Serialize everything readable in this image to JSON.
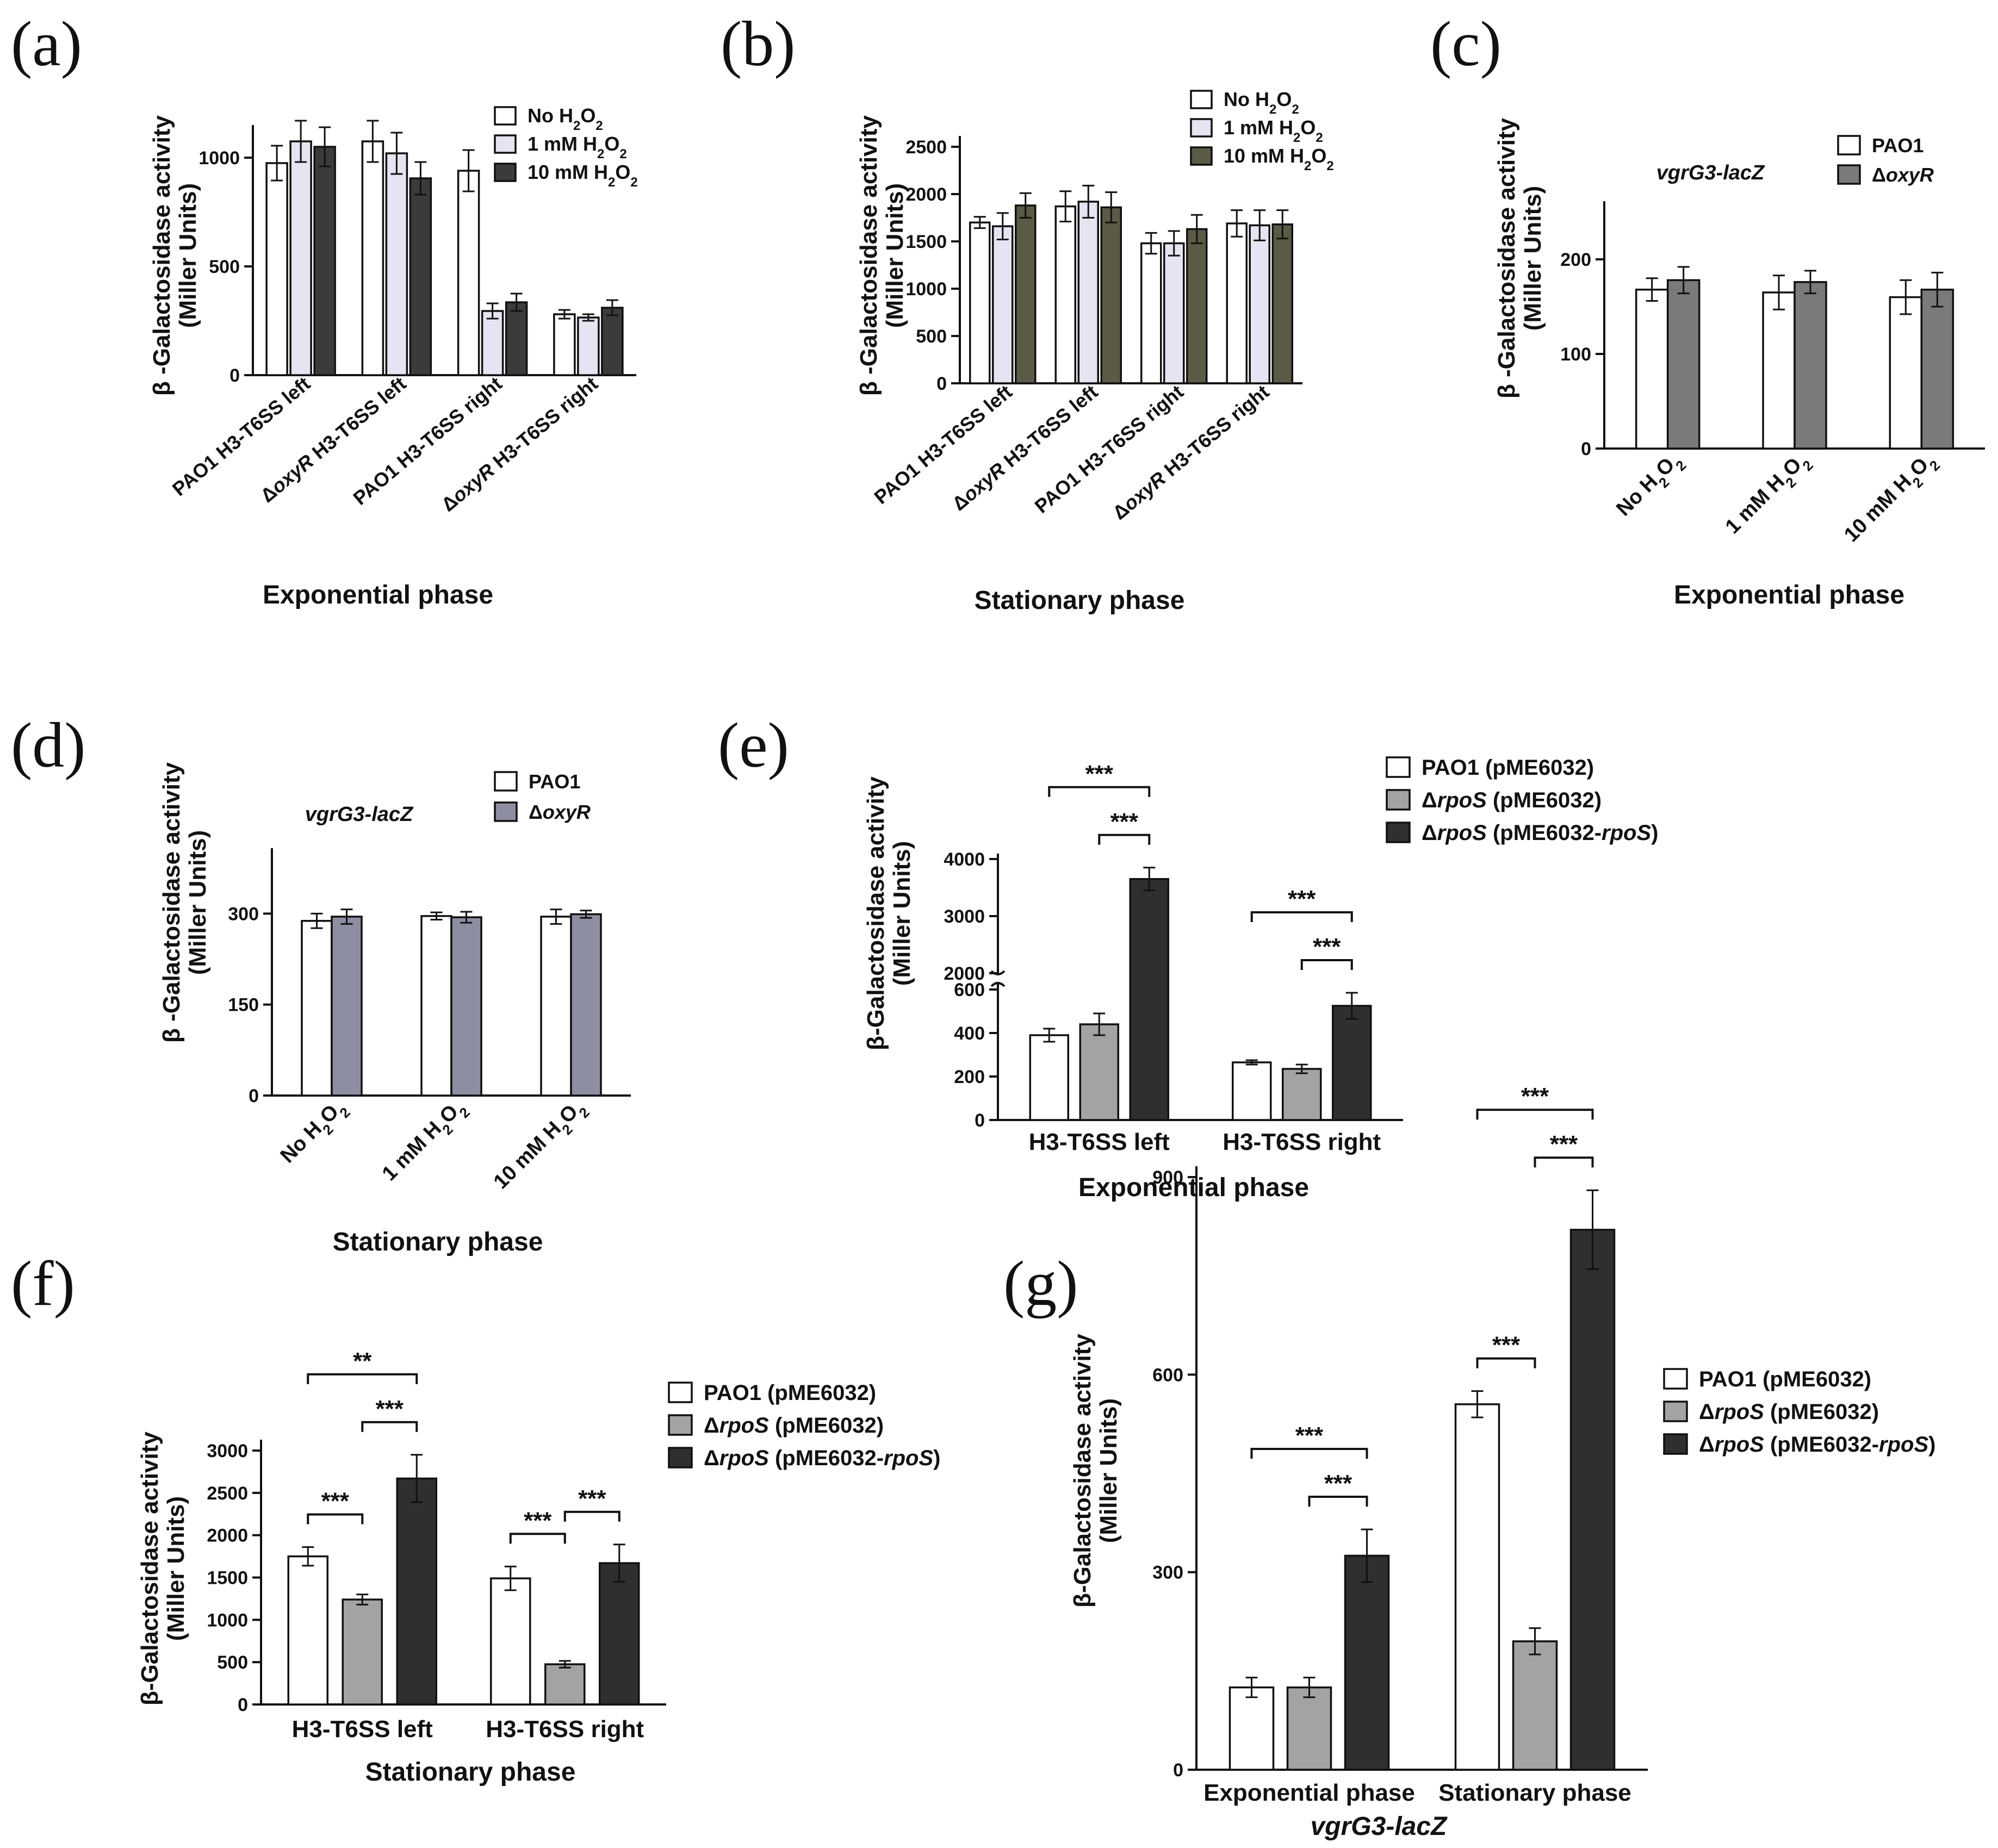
{
  "chart_data": [
    {
      "id": "a",
      "panel_label": "(a)",
      "type": "bar",
      "ylabel": "β -Galactosidase activity",
      "ylabel2": "(Miller Units)",
      "xlabel": "Exponential phase",
      "ylim": [
        0,
        1100
      ],
      "yticks": [
        "0",
        "500",
        "1000"
      ],
      "ytick_values": [
        0,
        500,
        1000
      ],
      "categories": [
        "PAO1 H3-T6SS left",
        "ΔoxyR H3-T6SS left",
        "PAO1 H3-T6SS right",
        "ΔoxyR H3-T6SS right"
      ],
      "category_parts": [
        [
          {
            "t": "PAO1 H3-T6SS left",
            "i": false
          }
        ],
        [
          {
            "t": "Δ",
            "i": false
          },
          {
            "t": "oxyR",
            "i": true
          },
          {
            "t": " H3-T6SS left",
            "i": false
          }
        ],
        [
          {
            "t": "PAO1 H3-T6SS right",
            "i": false
          }
        ],
        [
          {
            "t": "Δ",
            "i": false
          },
          {
            "t": "oxyR",
            "i": true
          },
          {
            "t": " H3-T6SS right",
            "i": false
          }
        ]
      ],
      "series": [
        {
          "name": "No H2O2",
          "color": "#ffffff",
          "values": [
            975,
            1075,
            940,
            280
          ],
          "errors": [
            80,
            95,
            95,
            20
          ]
        },
        {
          "name": "1 mM H2O2",
          "color": "#e6e4f2",
          "values": [
            1075,
            1020,
            295,
            265
          ],
          "errors": [
            95,
            95,
            35,
            15
          ]
        },
        {
          "name": "10 mM H2O2",
          "color": "#3b3b3b",
          "values": [
            1050,
            905,
            335,
            310
          ],
          "errors": [
            90,
            75,
            40,
            35
          ]
        }
      ],
      "legend": [
        {
          "parts": [
            {
              "t": "No H",
              "s": "n"
            },
            {
              "t": "2",
              "s": "sub"
            },
            {
              "t": "O",
              "s": "n"
            },
            {
              "t": "2",
              "s": "sub"
            }
          ]
        },
        {
          "parts": [
            {
              "t": "1 mM H",
              "s": "n"
            },
            {
              "t": "2",
              "s": "sub"
            },
            {
              "t": "O",
              "s": "n"
            },
            {
              "t": "2",
              "s": "sub"
            }
          ]
        },
        {
          "parts": [
            {
              "t": "10 mM H",
              "s": "n"
            },
            {
              "t": "2",
              "s": "sub"
            },
            {
              "t": "O",
              "s": "n"
            },
            {
              "t": "2",
              "s": "sub"
            }
          ]
        }
      ]
    },
    {
      "id": "b",
      "panel_label": "(b)",
      "type": "bar",
      "ylabel": "β -Galactosidase activity",
      "ylabel2": "(Miller Units)",
      "xlabel": "Stationary phase",
      "ylim": [
        0,
        2500
      ],
      "yticks": [
        "0",
        "500",
        "1000",
        "1500",
        "2000",
        "2500"
      ],
      "ytick_values": [
        0,
        500,
        1000,
        1500,
        2000,
        2500
      ],
      "categories": [
        "PAO1 H3-T6SS left",
        "ΔoxyR H3-T6SS left",
        "PAO1 H3-T6SS right",
        "ΔoxyR H3-T6SS right"
      ],
      "category_parts": [
        [
          {
            "t": "PAO1 H3-T6SS left",
            "i": false
          }
        ],
        [
          {
            "t": "Δ",
            "i": false
          },
          {
            "t": "oxyR",
            "i": true
          },
          {
            "t": " H3-T6SS left",
            "i": false
          }
        ],
        [
          {
            "t": "PAO1 H3-T6SS right",
            "i": false
          }
        ],
        [
          {
            "t": "Δ",
            "i": false
          },
          {
            "t": "oxyR",
            "i": true
          },
          {
            "t": " H3-T6SS right",
            "i": false
          }
        ]
      ],
      "series": [
        {
          "name": "No H2O2",
          "color": "#ffffff",
          "values": [
            1700,
            1870,
            1480,
            1690
          ],
          "errors": [
            60,
            160,
            110,
            140
          ]
        },
        {
          "name": "1 mM H2O2",
          "color": "#e6e4f2",
          "values": [
            1660,
            1920,
            1480,
            1670
          ],
          "errors": [
            140,
            170,
            130,
            160
          ]
        },
        {
          "name": "10 mM H2O2",
          "color": "#5a5a46",
          "values": [
            1880,
            1860,
            1630,
            1680
          ],
          "errors": [
            130,
            160,
            150,
            150
          ]
        }
      ],
      "legend": [
        {
          "parts": [
            {
              "t": "No H",
              "s": "n"
            },
            {
              "t": "2",
              "s": "sub"
            },
            {
              "t": "O",
              "s": "n"
            },
            {
              "t": "2",
              "s": "sub"
            }
          ]
        },
        {
          "parts": [
            {
              "t": "1 mM H",
              "s": "n"
            },
            {
              "t": "2",
              "s": "sub"
            },
            {
              "t": "O",
              "s": "n"
            },
            {
              "t": "2",
              "s": "sub"
            }
          ]
        },
        {
          "parts": [
            {
              "t": "10 mM H",
              "s": "n"
            },
            {
              "t": "2",
              "s": "sub"
            },
            {
              "t": "O",
              "s": "n"
            },
            {
              "t": "2",
              "s": "sub"
            }
          ]
        }
      ]
    },
    {
      "id": "c",
      "panel_label": "(c)",
      "type": "bar",
      "ylabel": "β -Galactosidase activity",
      "ylabel2": "(Miller Units)",
      "xlabel": "Exponential phase",
      "annotation": "vgrG3-lacZ",
      "ylim": [
        0,
        250
      ],
      "yticks": [
        "0",
        "100",
        "200"
      ],
      "ytick_values": [
        0,
        100,
        200
      ],
      "categories": [
        "No H2O2",
        "1 mM H2O2",
        "10 mM H2O2"
      ],
      "category_sub": [
        [
          {
            "t": "No H",
            "s": "n"
          },
          {
            "t": "2",
            "s": "sub"
          },
          {
            "t": "O",
            "s": "n"
          },
          {
            "t": "2",
            "s": "sub"
          }
        ],
        [
          {
            "t": "1 mM H",
            "s": "n"
          },
          {
            "t": "2",
            "s": "sub"
          },
          {
            "t": "O",
            "s": "n"
          },
          {
            "t": "2",
            "s": "sub"
          }
        ],
        [
          {
            "t": "10 mM H",
            "s": "n"
          },
          {
            "t": "2",
            "s": "sub"
          },
          {
            "t": "O",
            "s": "n"
          },
          {
            "t": "2",
            "s": "sub"
          }
        ]
      ],
      "series": [
        {
          "name": "PAO1",
          "color": "#ffffff",
          "values": [
            168,
            165,
            160
          ],
          "errors": [
            12,
            18,
            18
          ]
        },
        {
          "name": "ΔoxyR",
          "color": "#7a7a7a",
          "values": [
            178,
            176,
            168
          ],
          "errors": [
            14,
            12,
            18
          ]
        }
      ],
      "legend": [
        {
          "parts": [
            {
              "t": "PAO1",
              "s": "n"
            }
          ]
        },
        {
          "parts": [
            {
              "t": "Δ",
              "s": "n"
            },
            {
              "t": "oxyR",
              "s": "i"
            }
          ]
        }
      ]
    },
    {
      "id": "d",
      "panel_label": "(d)",
      "type": "bar",
      "ylabel": "β -Galactosidase activity",
      "ylabel2": "(Miller Units)",
      "xlabel": "Stationary phase",
      "annotation": "vgrG3-lacZ",
      "ylim": [
        0,
        390
      ],
      "yticks": [
        "0",
        "150",
        "300"
      ],
      "ytick_values": [
        0,
        150,
        300
      ],
      "categories": [
        "No H2O2",
        "1 mM H2O2",
        "10 mM H2O2"
      ],
      "category_sub": [
        [
          {
            "t": "No H",
            "s": "n"
          },
          {
            "t": "2",
            "s": "sub"
          },
          {
            "t": "O",
            "s": "n"
          },
          {
            "t": "2",
            "s": "sub"
          }
        ],
        [
          {
            "t": "1 mM H",
            "s": "n"
          },
          {
            "t": "2",
            "s": "sub"
          },
          {
            "t": "O",
            "s": "n"
          },
          {
            "t": "2",
            "s": "sub"
          }
        ],
        [
          {
            "t": "10 mM H",
            "s": "n"
          },
          {
            "t": "2",
            "s": "sub"
          },
          {
            "t": "O",
            "s": "n"
          },
          {
            "t": "2",
            "s": "sub"
          }
        ]
      ],
      "series": [
        {
          "name": "PAO1",
          "color": "#ffffff",
          "values": [
            288,
            296,
            295
          ],
          "errors": [
            12,
            6,
            12
          ]
        },
        {
          "name": "ΔoxyR",
          "color": "#8e8ea3",
          "values": [
            295,
            294,
            299
          ],
          "errors": [
            12,
            9,
            6
          ]
        }
      ],
      "legend": [
        {
          "parts": [
            {
              "t": "PAO1",
              "s": "n"
            }
          ]
        },
        {
          "parts": [
            {
              "t": "Δ",
              "s": "n"
            },
            {
              "t": "oxyR",
              "s": "i"
            }
          ]
        }
      ]
    },
    {
      "id": "e",
      "panel_label": "(e)",
      "type": "bar",
      "ylabel": "β-Galactosidase activity",
      "ylabel2": "(Miller Units)",
      "xlabel": "Exponential phase",
      "axis_break": {
        "lower": [
          0,
          650
        ],
        "upper": [
          2000,
          4000
        ]
      },
      "yticks_lower": [
        "0",
        "200",
        "400",
        "600"
      ],
      "ytick_lower_values": [
        0,
        200,
        400,
        600
      ],
      "yticks_upper": [
        "2000",
        "3000",
        "4000"
      ],
      "ytick_upper_values": [
        2000,
        3000,
        4000
      ],
      "categories": [
        "H3-T6SS left",
        "H3-T6SS right"
      ],
      "series": [
        {
          "name": "PAO1 (pME6032)",
          "color": "#ffffff",
          "values": [
            390,
            265
          ],
          "errors": [
            30,
            10
          ]
        },
        {
          "name": "ΔrpoS (pME6032)",
          "color": "#a3a3a3",
          "values": [
            440,
            235
          ],
          "errors": [
            50,
            20
          ]
        },
        {
          "name": "ΔrpoS (pME6032-rpoS)",
          "color": "#2f2f2f",
          "values": [
            3650,
            525
          ],
          "errors": [
            200,
            60
          ]
        }
      ],
      "significance": [
        {
          "group": 0,
          "from": 0,
          "to": 2,
          "label": "***",
          "level": 2
        },
        {
          "group": 0,
          "from": 1,
          "to": 2,
          "label": "***",
          "level": 1
        },
        {
          "group": 1,
          "from": 0,
          "to": 2,
          "label": "***",
          "level": 2
        },
        {
          "group": 1,
          "from": 1,
          "to": 2,
          "label": "***",
          "level": 1
        }
      ],
      "legend": [
        {
          "parts": [
            {
              "t": "PAO1 (pME6032)",
              "s": "n"
            }
          ]
        },
        {
          "parts": [
            {
              "t": "Δ",
              "s": "n"
            },
            {
              "t": "rpoS",
              "s": "i"
            },
            {
              "t": " (pME6032)",
              "s": "n"
            }
          ]
        },
        {
          "parts": [
            {
              "t": "Δ",
              "s": "n"
            },
            {
              "t": "rpoS",
              "s": "i"
            },
            {
              "t": " (pME6032-",
              "s": "n"
            },
            {
              "t": "rpoS",
              "s": "i"
            },
            {
              "t": ")",
              "s": "n"
            }
          ]
        }
      ]
    },
    {
      "id": "f",
      "panel_label": "(f)",
      "type": "bar",
      "ylabel": "β-Galactosidase activity",
      "ylabel2": "(Miller Units)",
      "xlabel": "Stationary phase",
      "ylim": [
        0,
        3000
      ],
      "yticks": [
        "0",
        "500",
        "1000",
        "1500",
        "2000",
        "2500",
        "3000"
      ],
      "ytick_values": [
        0,
        500,
        1000,
        1500,
        2000,
        2500,
        3000
      ],
      "categories": [
        "H3-T6SS left",
        "H3-T6SS right"
      ],
      "series": [
        {
          "name": "PAO1 (pME6032)",
          "color": "#ffffff",
          "values": [
            1750,
            1490
          ],
          "errors": [
            110,
            140
          ]
        },
        {
          "name": "ΔrpoS (pME6032)",
          "color": "#a3a3a3",
          "values": [
            1240,
            475
          ],
          "errors": [
            60,
            40
          ]
        },
        {
          "name": "ΔrpoS (pME6032-rpoS)",
          "color": "#2f2f2f",
          "values": [
            2670,
            1670
          ],
          "errors": [
            280,
            220
          ]
        }
      ],
      "significance": [
        {
          "group": 0,
          "from": 0,
          "to": 2,
          "label": "**",
          "level": 2
        },
        {
          "group": 0,
          "from": 0,
          "to": 1,
          "label": "***",
          "level": 1
        },
        {
          "group": 0,
          "from": 1,
          "to": 2,
          "label": "***",
          "level": 1
        },
        {
          "group": 1,
          "from": 0,
          "to": 1,
          "label": "***",
          "level": 1
        },
        {
          "group": 1,
          "from": 1,
          "to": 2,
          "label": "***",
          "level": 1
        }
      ],
      "legend": [
        {
          "parts": [
            {
              "t": "PAO1 (pME6032)",
              "s": "n"
            }
          ]
        },
        {
          "parts": [
            {
              "t": "Δ",
              "s": "n"
            },
            {
              "t": "rpoS",
              "s": "i"
            },
            {
              "t": " (pME6032)",
              "s": "n"
            }
          ]
        },
        {
          "parts": [
            {
              "t": "Δ",
              "s": "n"
            },
            {
              "t": "rpoS",
              "s": "i"
            },
            {
              "t": " (pME6032-",
              "s": "n"
            },
            {
              "t": "rpoS",
              "s": "i"
            },
            {
              "t": ")",
              "s": "n"
            }
          ]
        }
      ]
    },
    {
      "id": "g",
      "panel_label": "(g)",
      "type": "bar",
      "ylabel": "β-Galactosidase activity",
      "ylabel2": "(Miller Units)",
      "xlabel": "vgrG3-lacZ",
      "xlabel_italic": true,
      "ylim": [
        0,
        900
      ],
      "yticks": [
        "0",
        "300",
        "600",
        "900"
      ],
      "ytick_values": [
        0,
        300,
        600,
        900
      ],
      "categories": [
        "Exponential phase",
        "Stationary phase"
      ],
      "series": [
        {
          "name": "PAO1 (pME6032)",
          "color": "#ffffff",
          "values": [
            125,
            555
          ],
          "errors": [
            15,
            20
          ]
        },
        {
          "name": "ΔrpoS (pME6032)",
          "color": "#a3a3a3",
          "values": [
            125,
            195
          ],
          "errors": [
            15,
            20
          ]
        },
        {
          "name": "ΔrpoS (pME6032-rpoS)",
          "color": "#2f2f2f",
          "values": [
            325,
            820
          ],
          "errors": [
            40,
            60
          ]
        }
      ],
      "significance": [
        {
          "group": 0,
          "from": 0,
          "to": 2,
          "label": "***",
          "level": 2
        },
        {
          "group": 0,
          "from": 1,
          "to": 2,
          "label": "***",
          "level": 1
        },
        {
          "group": 1,
          "from": 0,
          "to": 2,
          "label": "***",
          "level": 2
        },
        {
          "group": 1,
          "from": 0,
          "to": 1,
          "label": "***",
          "level": 1
        },
        {
          "group": 1,
          "from": 1,
          "to": 2,
          "label": "***",
          "level": 1
        }
      ],
      "legend": [
        {
          "parts": [
            {
              "t": "PAO1 (pME6032)",
              "s": "n"
            }
          ]
        },
        {
          "parts": [
            {
              "t": "Δ",
              "s": "n"
            },
            {
              "t": "rpoS",
              "s": "i"
            },
            {
              "t": " (pME6032)",
              "s": "n"
            }
          ]
        },
        {
          "parts": [
            {
              "t": "Δ",
              "s": "n"
            },
            {
              "t": "rpoS",
              "s": "i"
            },
            {
              "t": " (pME6032-",
              "s": "n"
            },
            {
              "t": "rpoS",
              "s": "i"
            },
            {
              "t": ")",
              "s": "n"
            }
          ]
        }
      ]
    }
  ]
}
